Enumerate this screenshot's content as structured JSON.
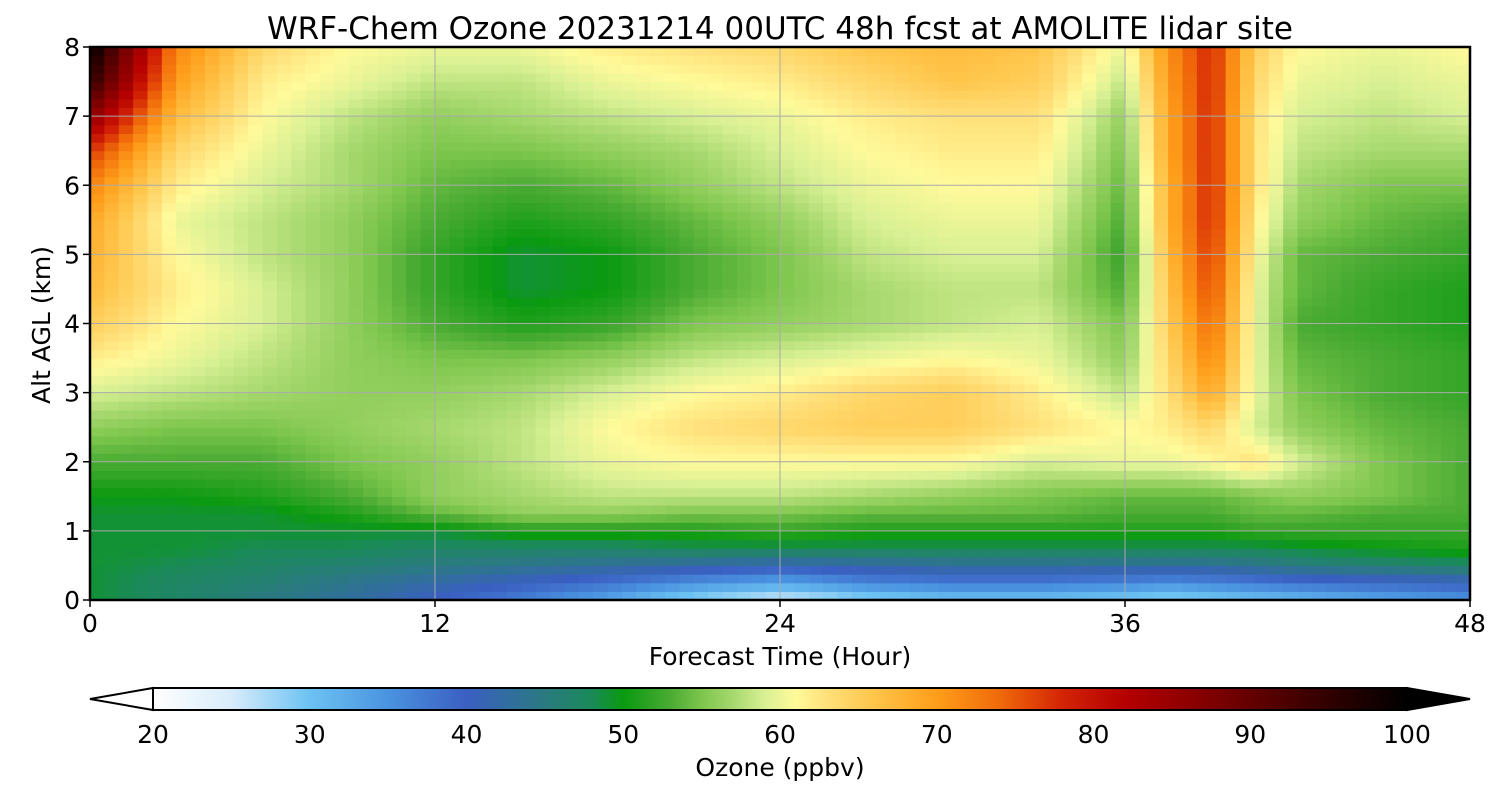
{
  "chart_data": {
    "type": "heatmap",
    "title": "WRF-Chem Ozone  20231214 00UTC 48h fcst at AMOLITE lidar site",
    "xlabel": "Forecast Time (Hour)",
    "ylabel": "Alt AGL (km)",
    "xlim": [
      0,
      48
    ],
    "ylim": [
      0,
      8
    ],
    "x_ticks": [
      "0",
      "12",
      "24",
      "36",
      "48"
    ],
    "y_ticks": [
      "0",
      "1",
      "2",
      "3",
      "4",
      "5",
      "6",
      "7",
      "8"
    ],
    "grid": true,
    "x": [
      0,
      3,
      6,
      9,
      12,
      15,
      18,
      21,
      24,
      27,
      30,
      33,
      36,
      37.5,
      39,
      40.5,
      42,
      45,
      48
    ],
    "y": [
      0,
      0.25,
      0.5,
      0.75,
      1,
      1.25,
      1.5,
      2,
      2.5,
      3,
      3.5,
      4,
      4.5,
      5,
      5.5,
      6,
      6.5,
      7,
      7.5,
      8
    ],
    "z": [
      [
        49,
        47,
        45,
        43,
        40,
        37,
        33,
        28,
        25,
        28,
        30,
        30,
        29,
        28,
        29,
        30,
        31,
        33,
        35
      ],
      [
        49,
        47,
        46,
        44,
        42,
        40,
        38,
        35,
        33,
        36,
        37,
        37,
        36,
        35,
        36,
        37,
        38,
        39,
        40
      ],
      [
        49,
        48,
        47,
        46,
        45,
        44,
        43,
        42,
        41,
        42,
        43,
        43,
        43,
        43,
        43,
        44,
        45,
        46,
        47
      ],
      [
        49,
        49,
        48,
        48,
        47,
        47,
        47,
        48,
        48,
        48,
        48,
        48,
        48,
        48,
        48,
        48,
        49,
        50,
        51
      ],
      [
        49,
        49,
        49,
        49,
        49,
        51,
        51,
        51,
        52,
        51,
        51,
        51,
        51,
        51,
        51,
        52,
        52,
        52,
        52
      ],
      [
        49,
        49,
        49,
        51,
        54,
        56,
        56,
        55,
        55,
        54,
        54,
        54,
        53,
        53,
        53,
        54,
        54,
        53,
        53
      ],
      [
        50,
        50,
        51,
        53,
        56,
        57,
        58,
        58,
        58,
        57,
        56,
        55,
        54,
        54,
        54,
        55,
        56,
        55,
        53
      ],
      [
        53,
        53,
        53,
        55,
        56,
        58,
        60,
        61,
        61,
        61,
        61,
        59,
        60,
        60,
        61,
        63,
        59,
        55,
        53
      ],
      [
        56,
        55,
        55,
        56,
        57,
        58,
        61,
        63,
        64,
        65,
        65,
        63,
        61,
        62,
        64,
        59,
        56,
        54,
        53
      ],
      [
        59,
        58,
        57,
        56,
        56,
        57,
        59,
        61,
        62,
        64,
        65,
        62,
        58,
        63,
        69,
        60,
        55,
        53,
        52
      ],
      [
        62,
        60,
        58,
        56,
        55,
        55,
        56,
        58,
        59,
        60,
        61,
        60,
        56,
        64,
        72,
        60,
        54,
        53,
        52
      ],
      [
        65,
        61,
        59,
        56,
        53,
        51,
        52,
        55,
        56,
        57,
        58,
        59,
        55,
        65,
        74,
        60,
        53,
        52,
        51
      ],
      [
        67,
        62,
        59,
        56,
        52,
        49,
        50,
        53,
        55,
        57,
        58,
        58,
        53,
        66,
        76,
        60,
        54,
        52,
        51
      ],
      [
        68,
        61,
        58,
        56,
        52,
        49,
        50,
        53,
        55,
        58,
        59,
        59,
        52,
        67,
        77,
        61,
        54,
        53,
        52
      ],
      [
        69,
        60,
        58,
        56,
        53,
        51,
        52,
        54,
        56,
        59,
        60,
        60,
        53,
        68,
        78,
        62,
        56,
        54,
        53
      ],
      [
        72,
        62,
        59,
        57,
        54,
        53,
        54,
        56,
        58,
        60,
        61,
        61,
        54,
        68,
        78,
        63,
        57,
        55,
        55
      ],
      [
        77,
        64,
        60,
        57,
        55,
        55,
        56,
        57,
        59,
        61,
        62,
        62,
        55,
        69,
        78,
        63,
        58,
        57,
        57
      ],
      [
        86,
        67,
        61,
        58,
        56,
        57,
        58,
        59,
        60,
        62,
        63,
        63,
        56,
        69,
        78,
        63,
        59,
        58,
        59
      ],
      [
        95,
        70,
        62,
        60,
        58,
        58,
        60,
        61,
        62,
        64,
        66,
        65,
        58,
        70,
        78,
        64,
        60,
        59,
        60
      ],
      [
        100,
        72,
        64,
        61,
        60,
        60,
        62,
        63,
        64,
        66,
        67,
        66,
        60,
        71,
        78,
        65,
        61,
        60,
        61
      ]
    ],
    "colorbar": {
      "label": "Ozone  (ppbv)",
      "min": 20,
      "max": 100,
      "ticks": [
        "20",
        "30",
        "40",
        "50",
        "60",
        "70",
        "80",
        "90",
        "100"
      ],
      "extend": "both",
      "stops": [
        [
          20,
          "#ffffff"
        ],
        [
          25,
          "#d8ecfb"
        ],
        [
          30,
          "#6cc2f2"
        ],
        [
          35,
          "#4a93e0"
        ],
        [
          40,
          "#3a5fc2"
        ],
        [
          45,
          "#2a7a80"
        ],
        [
          48,
          "#1a8a58"
        ],
        [
          50,
          "#0a9a10"
        ],
        [
          53,
          "#4aab33"
        ],
        [
          55,
          "#7dc64c"
        ],
        [
          57,
          "#a6d86e"
        ],
        [
          59,
          "#d8f094"
        ],
        [
          61,
          "#fffa9a"
        ],
        [
          63,
          "#ffe07a"
        ],
        [
          66,
          "#ffc54a"
        ],
        [
          70,
          "#ff9e1a"
        ],
        [
          74,
          "#f06a0a"
        ],
        [
          78,
          "#d42406"
        ],
        [
          82,
          "#b50000"
        ],
        [
          88,
          "#7a0000"
        ],
        [
          94,
          "#3a0000"
        ],
        [
          100,
          "#000000"
        ]
      ]
    }
  }
}
